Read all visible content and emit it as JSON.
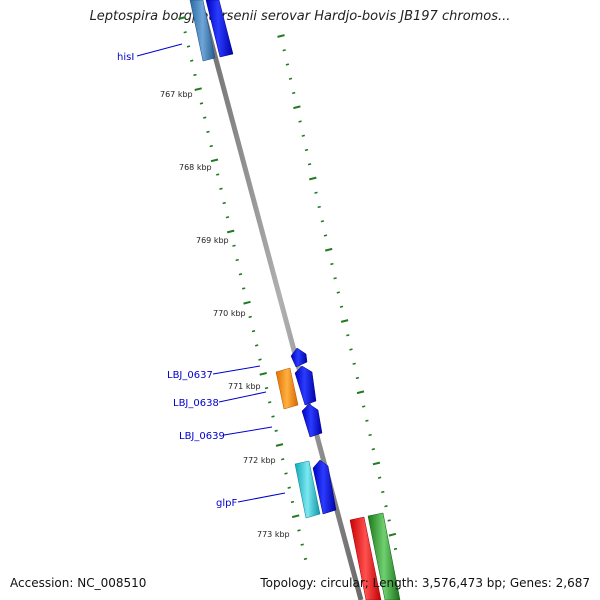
{
  "title": "Leptospira borgpetersenii serovar Hardjo-bovis JB197 chromos...",
  "accession": "Accession: NC_008510",
  "summary": "Topology: circular; Length: 3,576,473 bp; Genes: 2,687",
  "ticks": [
    "767 kbp",
    "768 kbp",
    "769 kbp",
    "770 kbp",
    "771 kbp",
    "772 kbp",
    "773 kbp"
  ],
  "gene_labels": [
    "hisI",
    "LBJ_0637",
    "LBJ_0638",
    "LBJ_0639",
    "glpF"
  ],
  "colors": {
    "backbone": "#8c8c8c",
    "tick": "#227a22",
    "label": "#0000cc",
    "cds_forward": "#0000e0",
    "cds_reverse": "#3a78b0",
    "orange": "#f08c1a",
    "cyan": "#1ab8c8",
    "red": "#e01010",
    "green": "#2a902a"
  }
}
